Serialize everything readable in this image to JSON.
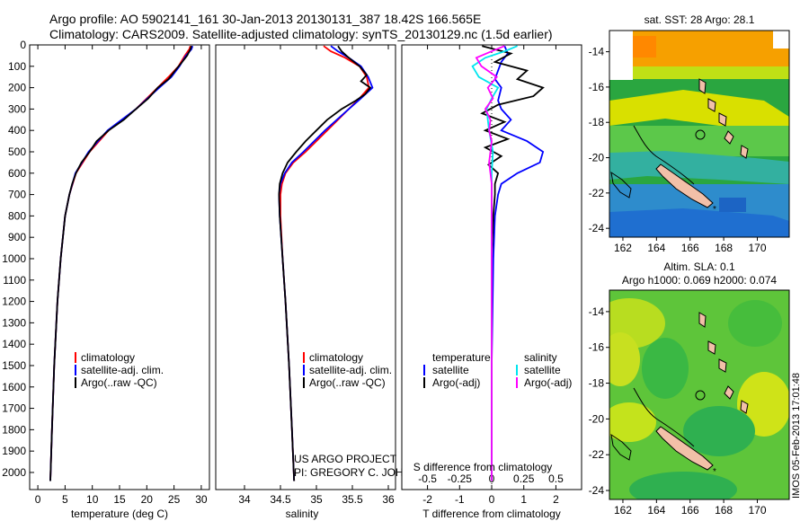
{
  "header": {
    "line1": "Argo profile: AO 5902141_161 30-Jan-2013 20130131_387 18.42S 166.565E",
    "line2": "Climatology: CARS2009. Satellite-adjusted climatology: synTS_20130129.nc (1.5d earlier)"
  },
  "credit": {
    "project": "US ARGO PROJECT",
    "pi": "PI: GREGORY C. JOHNSON"
  },
  "watermark": "IMOS 05-Feb-2013 17:01:48",
  "colors": {
    "climatology": "#ff0000",
    "satellite": "#0000ff",
    "argo": "#000000",
    "sat_salinity": "#00e5ee",
    "argo_salinity": "#ff00ff"
  },
  "chart_data": [
    {
      "id": "temperature",
      "type": "line",
      "xlabel": "temperature (deg C)",
      "ylabel": "",
      "xlim": [
        -1.5,
        31.5
      ],
      "ylim": [
        2080,
        0
      ],
      "xticks": [
        "0",
        "5",
        "10",
        "15",
        "20",
        "25",
        "30"
      ],
      "yticks": [
        "0",
        "100",
        "200",
        "300",
        "400",
        "500",
        "600",
        "700",
        "800",
        "900",
        "1000",
        "1100",
        "1200",
        "1300",
        "1400",
        "1500",
        "1600",
        "1700",
        "1800",
        "1900",
        "2000"
      ],
      "legend": {
        "position": "center-left",
        "entries": [
          "climatology",
          "satellite-adj. clim.",
          "Argo(..raw -QC)"
        ]
      },
      "series": [
        {
          "name": "climatology",
          "color": "#ff0000",
          "depth": [
            5,
            20,
            50,
            100,
            150,
            200,
            300,
            400,
            500,
            600,
            700,
            800,
            1000,
            1200,
            1500,
            1800,
            2040
          ],
          "values": [
            28.0,
            27.8,
            27.0,
            25.8,
            24.0,
            22.0,
            18.0,
            13.0,
            9.5,
            7.0,
            5.8,
            5.0,
            4.2,
            3.6,
            3.0,
            2.6,
            2.3
          ]
        },
        {
          "name": "satellite-adj. clim.",
          "color": "#0000ff",
          "depth": [
            5,
            20,
            50,
            100,
            150,
            200,
            300,
            400,
            500,
            600,
            700,
            800,
            1000,
            1200,
            1500,
            1800,
            2040
          ],
          "values": [
            28.4,
            28.2,
            27.2,
            26.0,
            24.5,
            22.3,
            18.0,
            12.8,
            9.3,
            6.9,
            5.8,
            5.0,
            4.2,
            3.6,
            3.0,
            2.6,
            2.3
          ]
        },
        {
          "name": "Argo(..raw -QC)",
          "color": "#000000",
          "depth": [
            5,
            20,
            50,
            80,
            120,
            160,
            200,
            250,
            300,
            350,
            400,
            450,
            500,
            550,
            600,
            650,
            700,
            800,
            1000,
            1200,
            1500,
            1800,
            2040
          ],
          "values": [
            28.2,
            28.0,
            27.4,
            26.5,
            25.2,
            24.0,
            22.0,
            20.3,
            18.0,
            15.8,
            13.0,
            10.8,
            9.5,
            8.0,
            7.0,
            6.3,
            5.8,
            5.0,
            4.2,
            3.6,
            3.0,
            2.6,
            2.3
          ]
        }
      ]
    },
    {
      "id": "salinity",
      "type": "line",
      "xlabel": "salinity",
      "ylabel": "",
      "xlim": [
        33.6,
        36.1
      ],
      "ylim": [
        2080,
        0
      ],
      "xticks": [
        "34",
        "34.5",
        "35",
        "35.5",
        "36"
      ],
      "legend": {
        "position": "center-right",
        "entries": [
          "climatology",
          "satellite-adj. clim.",
          "Argo(..raw -QC)"
        ]
      },
      "series": [
        {
          "name": "climatology",
          "color": "#ff0000",
          "depth": [
            5,
            30,
            60,
            100,
            150,
            200,
            250,
            300,
            400,
            500,
            550,
            600,
            650,
            700,
            800,
            1000,
            1200,
            1500,
            1800,
            2040
          ],
          "values": [
            35.1,
            35.2,
            35.4,
            35.6,
            35.7,
            35.73,
            35.6,
            35.45,
            35.15,
            34.85,
            34.68,
            34.57,
            34.52,
            34.5,
            34.5,
            34.53,
            34.57,
            34.62,
            34.66,
            34.69
          ]
        },
        {
          "name": "satellite-adj. clim.",
          "color": "#0000ff",
          "depth": [
            5,
            30,
            60,
            100,
            150,
            200,
            250,
            300,
            400,
            500,
            550,
            600,
            650,
            700,
            800,
            1000,
            1200,
            1500,
            1800,
            2040
          ],
          "values": [
            35.2,
            35.3,
            35.45,
            35.62,
            35.72,
            35.78,
            35.62,
            35.45,
            35.12,
            34.82,
            34.66,
            34.56,
            34.5,
            34.48,
            34.49,
            34.53,
            34.57,
            34.62,
            34.66,
            34.69
          ]
        },
        {
          "name": "Argo(..raw -QC)",
          "color": "#000000",
          "depth": [
            5,
            30,
            60,
            100,
            140,
            170,
            200,
            230,
            260,
            300,
            350,
            400,
            450,
            500,
            550,
            600,
            650,
            700,
            800,
            1000,
            1200,
            1500,
            1800,
            2040
          ],
          "values": [
            35.3,
            35.35,
            35.45,
            35.6,
            35.7,
            35.62,
            35.75,
            35.68,
            35.55,
            35.35,
            35.15,
            35.0,
            34.85,
            34.72,
            34.6,
            34.53,
            34.49,
            34.48,
            34.49,
            34.53,
            34.57,
            34.62,
            34.66,
            34.69
          ]
        }
      ]
    },
    {
      "id": "difference",
      "type": "line",
      "xlabel": "T difference from climatology",
      "xlabel_top": "S difference from climatology",
      "xlim": [
        -2.8,
        2.8
      ],
      "ylim": [
        2080,
        0
      ],
      "xticks": [
        "-2",
        "-1",
        "0",
        "1",
        "2"
      ],
      "xticks_top": [
        "-0.5",
        "-0.25",
        "0",
        "0.25",
        "0.5"
      ],
      "legend": {
        "position": "center",
        "headers": [
          "temperature",
          "salinity"
        ],
        "entries": [
          "satellite",
          "Argo(-adj)",
          "satellite",
          "Argo(-adj)"
        ]
      },
      "series": [
        {
          "name": "temperature satellite",
          "color": "#0000ff",
          "depth": [
            5,
            40,
            80,
            120,
            160,
            200,
            260,
            300,
            350,
            400,
            450,
            500,
            550,
            600,
            650,
            700,
            800,
            1000,
            1500,
            2040
          ],
          "values": [
            0.4,
            0.5,
            0.3,
            0.2,
            0.1,
            0.3,
            0.2,
            0.3,
            0.6,
            0.3,
            1.1,
            1.6,
            1.5,
            0.8,
            0.3,
            0.2,
            0.1,
            0.05,
            0.0,
            0.0
          ]
        },
        {
          "name": "temperature Argo(-adj)",
          "color": "#000000",
          "depth": [
            5,
            40,
            80,
            120,
            160,
            200,
            240,
            280,
            320,
            360,
            400,
            440,
            480,
            520,
            560,
            600,
            650,
            700,
            800,
            1000,
            1500,
            2040
          ],
          "values": [
            -0.3,
            0.6,
            0.1,
            1.1,
            0.8,
            1.6,
            1.3,
            0.2,
            -0.3,
            0.4,
            -0.2,
            0.5,
            -0.2,
            0.3,
            -0.1,
            0.2,
            0.1,
            0.1,
            0.05,
            0.0,
            0.0,
            0.0
          ]
        },
        {
          "name": "salinity satellite",
          "color": "#00e5ee",
          "depth": [
            5,
            30,
            60,
            100,
            150,
            200,
            250,
            300,
            400,
            500,
            600,
            700,
            800,
            1000,
            1500,
            2040
          ],
          "values": [
            0.2,
            0.1,
            -0.05,
            -0.15,
            -0.1,
            0.05,
            0.0,
            -0.04,
            -0.02,
            0.01,
            0.0,
            0.0,
            0.0,
            0.0,
            0.0,
            0.0
          ]
        },
        {
          "name": "salinity Argo(-adj)",
          "color": "#ff00ff",
          "depth": [
            5,
            30,
            60,
            100,
            150,
            200,
            250,
            300,
            350,
            400,
            450,
            500,
            550,
            600,
            650,
            700,
            800,
            1000,
            1500,
            2040
          ],
          "values": [
            0.1,
            0.0,
            -0.12,
            -0.08,
            0.04,
            -0.03,
            0.01,
            -0.05,
            -0.01,
            -0.02,
            0.0,
            -0.01,
            -0.02,
            -0.01,
            0.0,
            0.0,
            0.0,
            0.0,
            0.0,
            0.0
          ]
        }
      ]
    }
  ],
  "maps": [
    {
      "id": "sst-map",
      "title": "sat. SST: 28 Argo: 28.1",
      "title2": "",
      "x_ticks": [
        "162",
        "164",
        "166",
        "168",
        "170"
      ],
      "y_ticks": [
        "-14",
        "-16",
        "-18",
        "-20",
        "-22",
        "-24"
      ],
      "lon_range": [
        161.2,
        171.9
      ],
      "lat_range": [
        -24.5,
        -12.8
      ]
    },
    {
      "id": "sla-map",
      "title": "Altim. SLA: 0.1",
      "title2": "Argo h1000: 0.069 h2000: 0.074",
      "x_ticks": [
        "162",
        "164",
        "166",
        "168",
        "170"
      ],
      "y_ticks": [
        "-14",
        "-16",
        "-18",
        "-20",
        "-22",
        "-24"
      ],
      "lon_range": [
        161.2,
        171.9
      ],
      "lat_range": [
        -24.5,
        -12.8
      ]
    }
  ]
}
